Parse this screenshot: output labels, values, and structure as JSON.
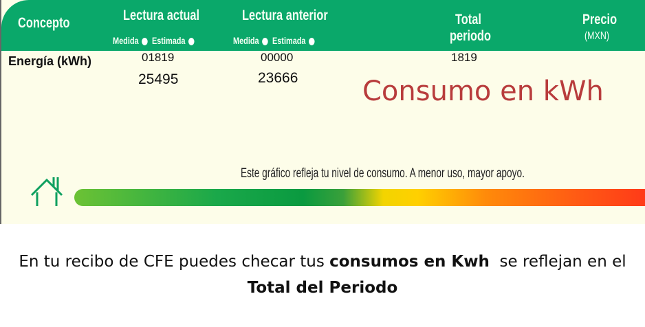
{
  "header": {
    "concepto": "Concepto",
    "lectura_actual": "Lectura actual",
    "lectura_anterior": "Lectura anterior",
    "medida": "Medida",
    "estimada": "Estimada",
    "total": "Total",
    "periodo": "periodo",
    "precio": "Precio",
    "moneda": "(MXN)"
  },
  "row": {
    "label": "Energía (kWh)",
    "actual_1": "01819",
    "actual_2": "25495",
    "anterior_1": "00000",
    "anterior_2": "23666",
    "total": "1819"
  },
  "overlay": "Consumo en kWh",
  "gauge": {
    "text": "Este gráfico refleja tu nivel de consumo. A menor uso, mayor apoyo.",
    "icon": "house-icon"
  },
  "caption": {
    "part1": "En tu recibo de CFE puedes checar tus ",
    "bold1": "consumos en Kwh",
    "part2": "  se reflejan en el ",
    "bold2": "Total del Periodo"
  },
  "colors": {
    "header": "#0aa86a",
    "overlay": "#b83c3c",
    "background": "#fdfde9"
  }
}
